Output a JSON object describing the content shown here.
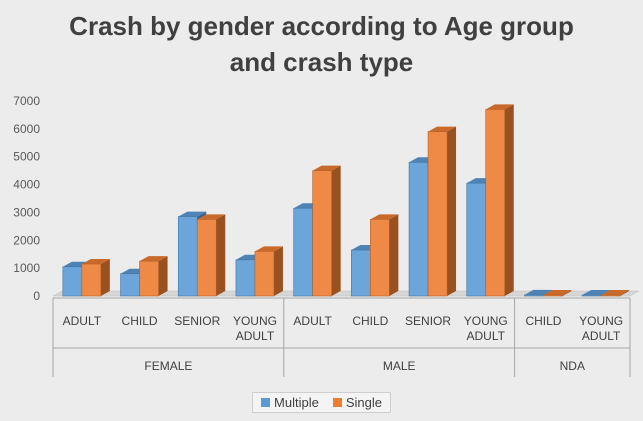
{
  "chart_data": {
    "type": "bar",
    "title_lines": [
      "Crash by gender according to Age group",
      "and crash type"
    ],
    "groups": [
      {
        "name": "FEMALE",
        "categories": [
          "ADULT",
          "CHILD",
          "SENIOR",
          "YOUNG ADULT"
        ]
      },
      {
        "name": "MALE",
        "categories": [
          "ADULT",
          "CHILD",
          "SENIOR",
          "YOUNG ADULT"
        ]
      },
      {
        "name": "NDA",
        "categories": [
          "CHILD",
          "YOUNG ADULT"
        ]
      }
    ],
    "series": [
      {
        "name": "Multiple",
        "color": "#5b9bd5",
        "values": [
          1050,
          800,
          2850,
          1300,
          3150,
          1650,
          4800,
          4050,
          40,
          0
        ]
      },
      {
        "name": "Single",
        "color": "#ed7d31",
        "values": [
          1150,
          1250,
          2750,
          1600,
          4500,
          2750,
          5900,
          6700,
          30,
          30
        ]
      }
    ],
    "y_ticks": [
      0,
      1000,
      2000,
      3000,
      4000,
      5000,
      6000,
      7000
    ],
    "ylim": [
      0,
      7000
    ],
    "legend_position": "bottom",
    "grid": false,
    "style": "3d-clustered-column"
  }
}
